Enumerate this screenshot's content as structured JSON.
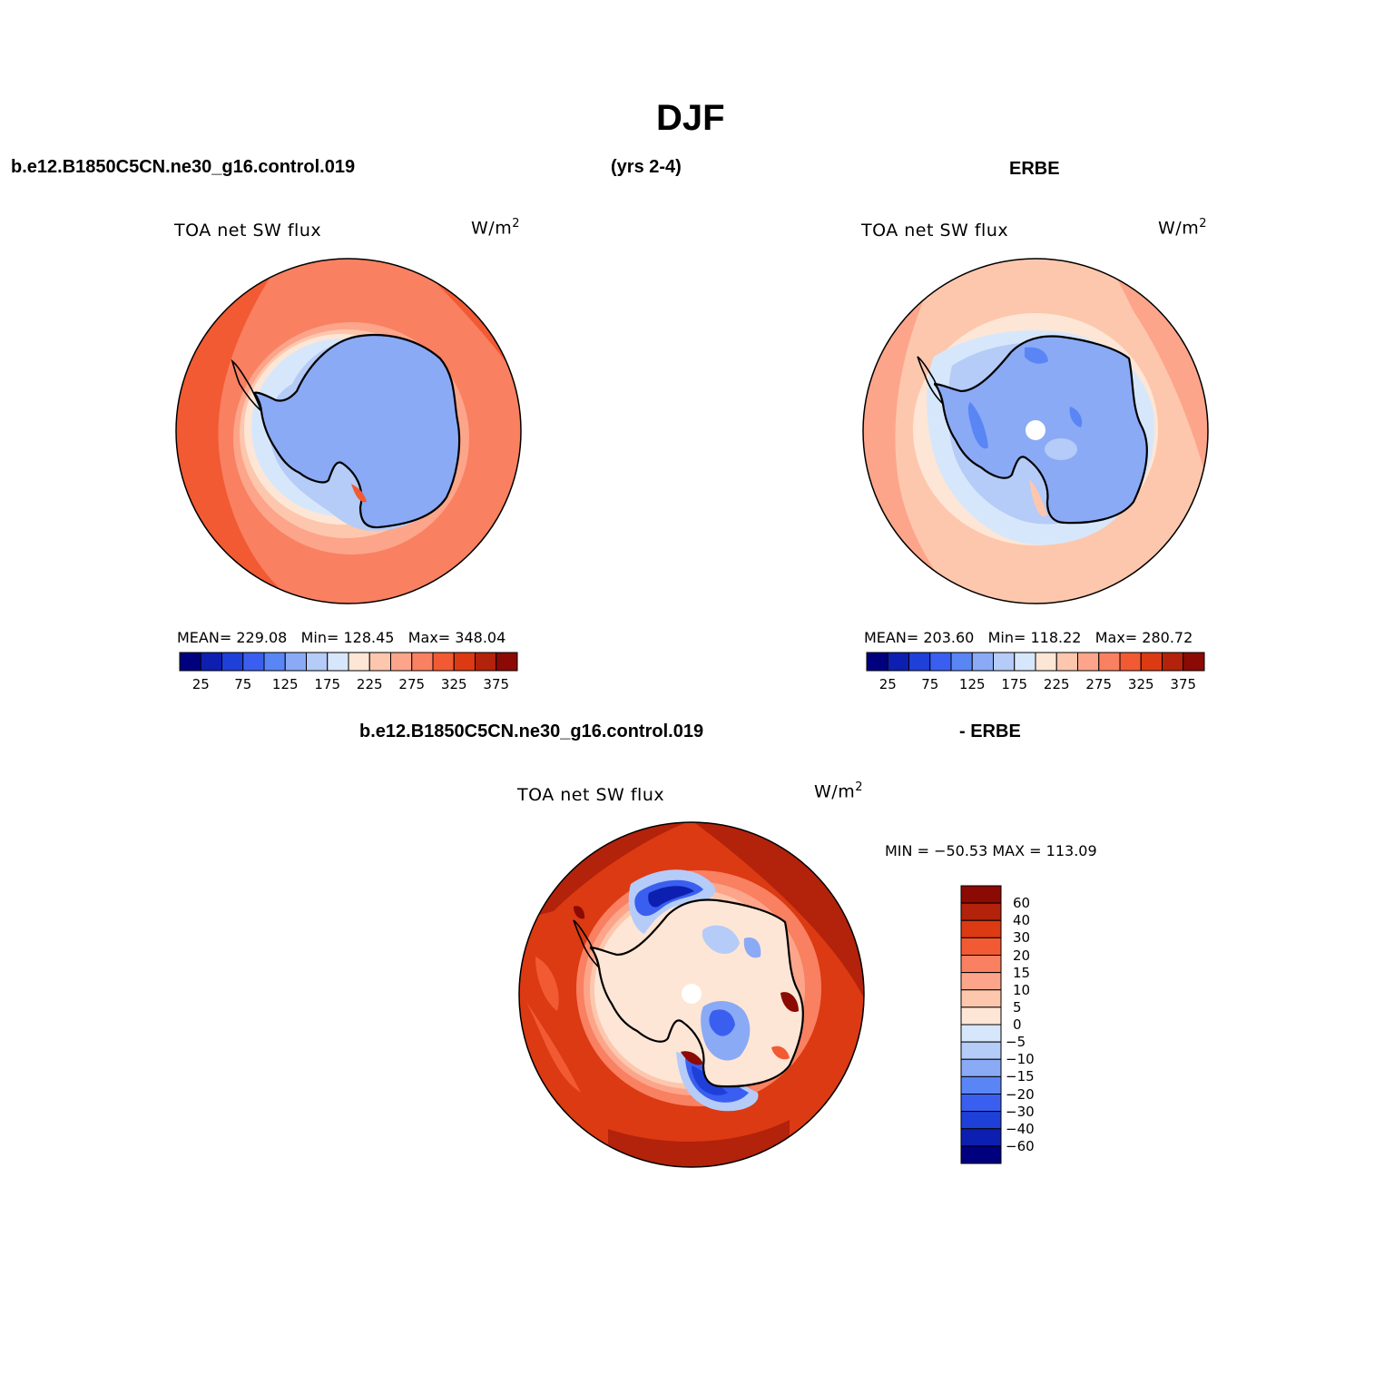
{
  "page": {
    "title": "DJF",
    "case_name": "b.e12.B1850C5CN.ne30_g16.control.019",
    "years": "(yrs 2-4)",
    "obs_name": "ERBE",
    "diff_case": "b.e12.B1850C5CN.ne30_g16.control.019",
    "diff_obs": "- ERBE"
  },
  "panels": {
    "model": {
      "variable": "TOA net SW flux",
      "units": "W/m",
      "units_sup": "2",
      "mean_label": "MEAN=",
      "mean": "229.08",
      "min_label": "Min=",
      "min": "128.45",
      "max_label": "Max=",
      "max": "348.04"
    },
    "obs": {
      "variable": "TOA net SW flux",
      "units": "W/m",
      "units_sup": "2",
      "mean_label": "MEAN=",
      "mean": "203.60",
      "min_label": "Min=",
      "min": "118.22",
      "max_label": "Max=",
      "max": "280.72"
    },
    "diff": {
      "variable": "TOA net SW flux",
      "units": "W/m",
      "units_sup": "2",
      "minmax": "MIN = −50.53  MAX = 113.09"
    }
  },
  "colorbar_abs": {
    "colors": [
      "#00007f",
      "#0d1fb0",
      "#1f3fd9",
      "#3a5ff0",
      "#5a85f5",
      "#8aaaf5",
      "#b5cbf8",
      "#d7e7fb",
      "#fde6d6",
      "#fdc7ad",
      "#fca58a",
      "#f98061",
      "#f25a33",
      "#db3a13",
      "#b3220a",
      "#8b0a04"
    ],
    "tick_labels": [
      "25",
      "75",
      "125",
      "175",
      "225",
      "275",
      "325",
      "375"
    ]
  },
  "colorbar_diff": {
    "colors": [
      "#8b0a04",
      "#b3220a",
      "#db3a13",
      "#f25a33",
      "#f98061",
      "#fca58a",
      "#fdc7ad",
      "#fde6d6",
      "#d7e7fb",
      "#b5cbf8",
      "#8aaaf5",
      "#5a85f5",
      "#3a5ff0",
      "#1f3fd9",
      "#0d1fb0",
      "#00007f"
    ],
    "tick_labels": [
      "60",
      "40",
      "30",
      "20",
      "15",
      "10",
      "5",
      "0",
      "−5",
      "−10",
      "−15",
      "−20",
      "−30",
      "−40",
      "−60"
    ]
  }
}
